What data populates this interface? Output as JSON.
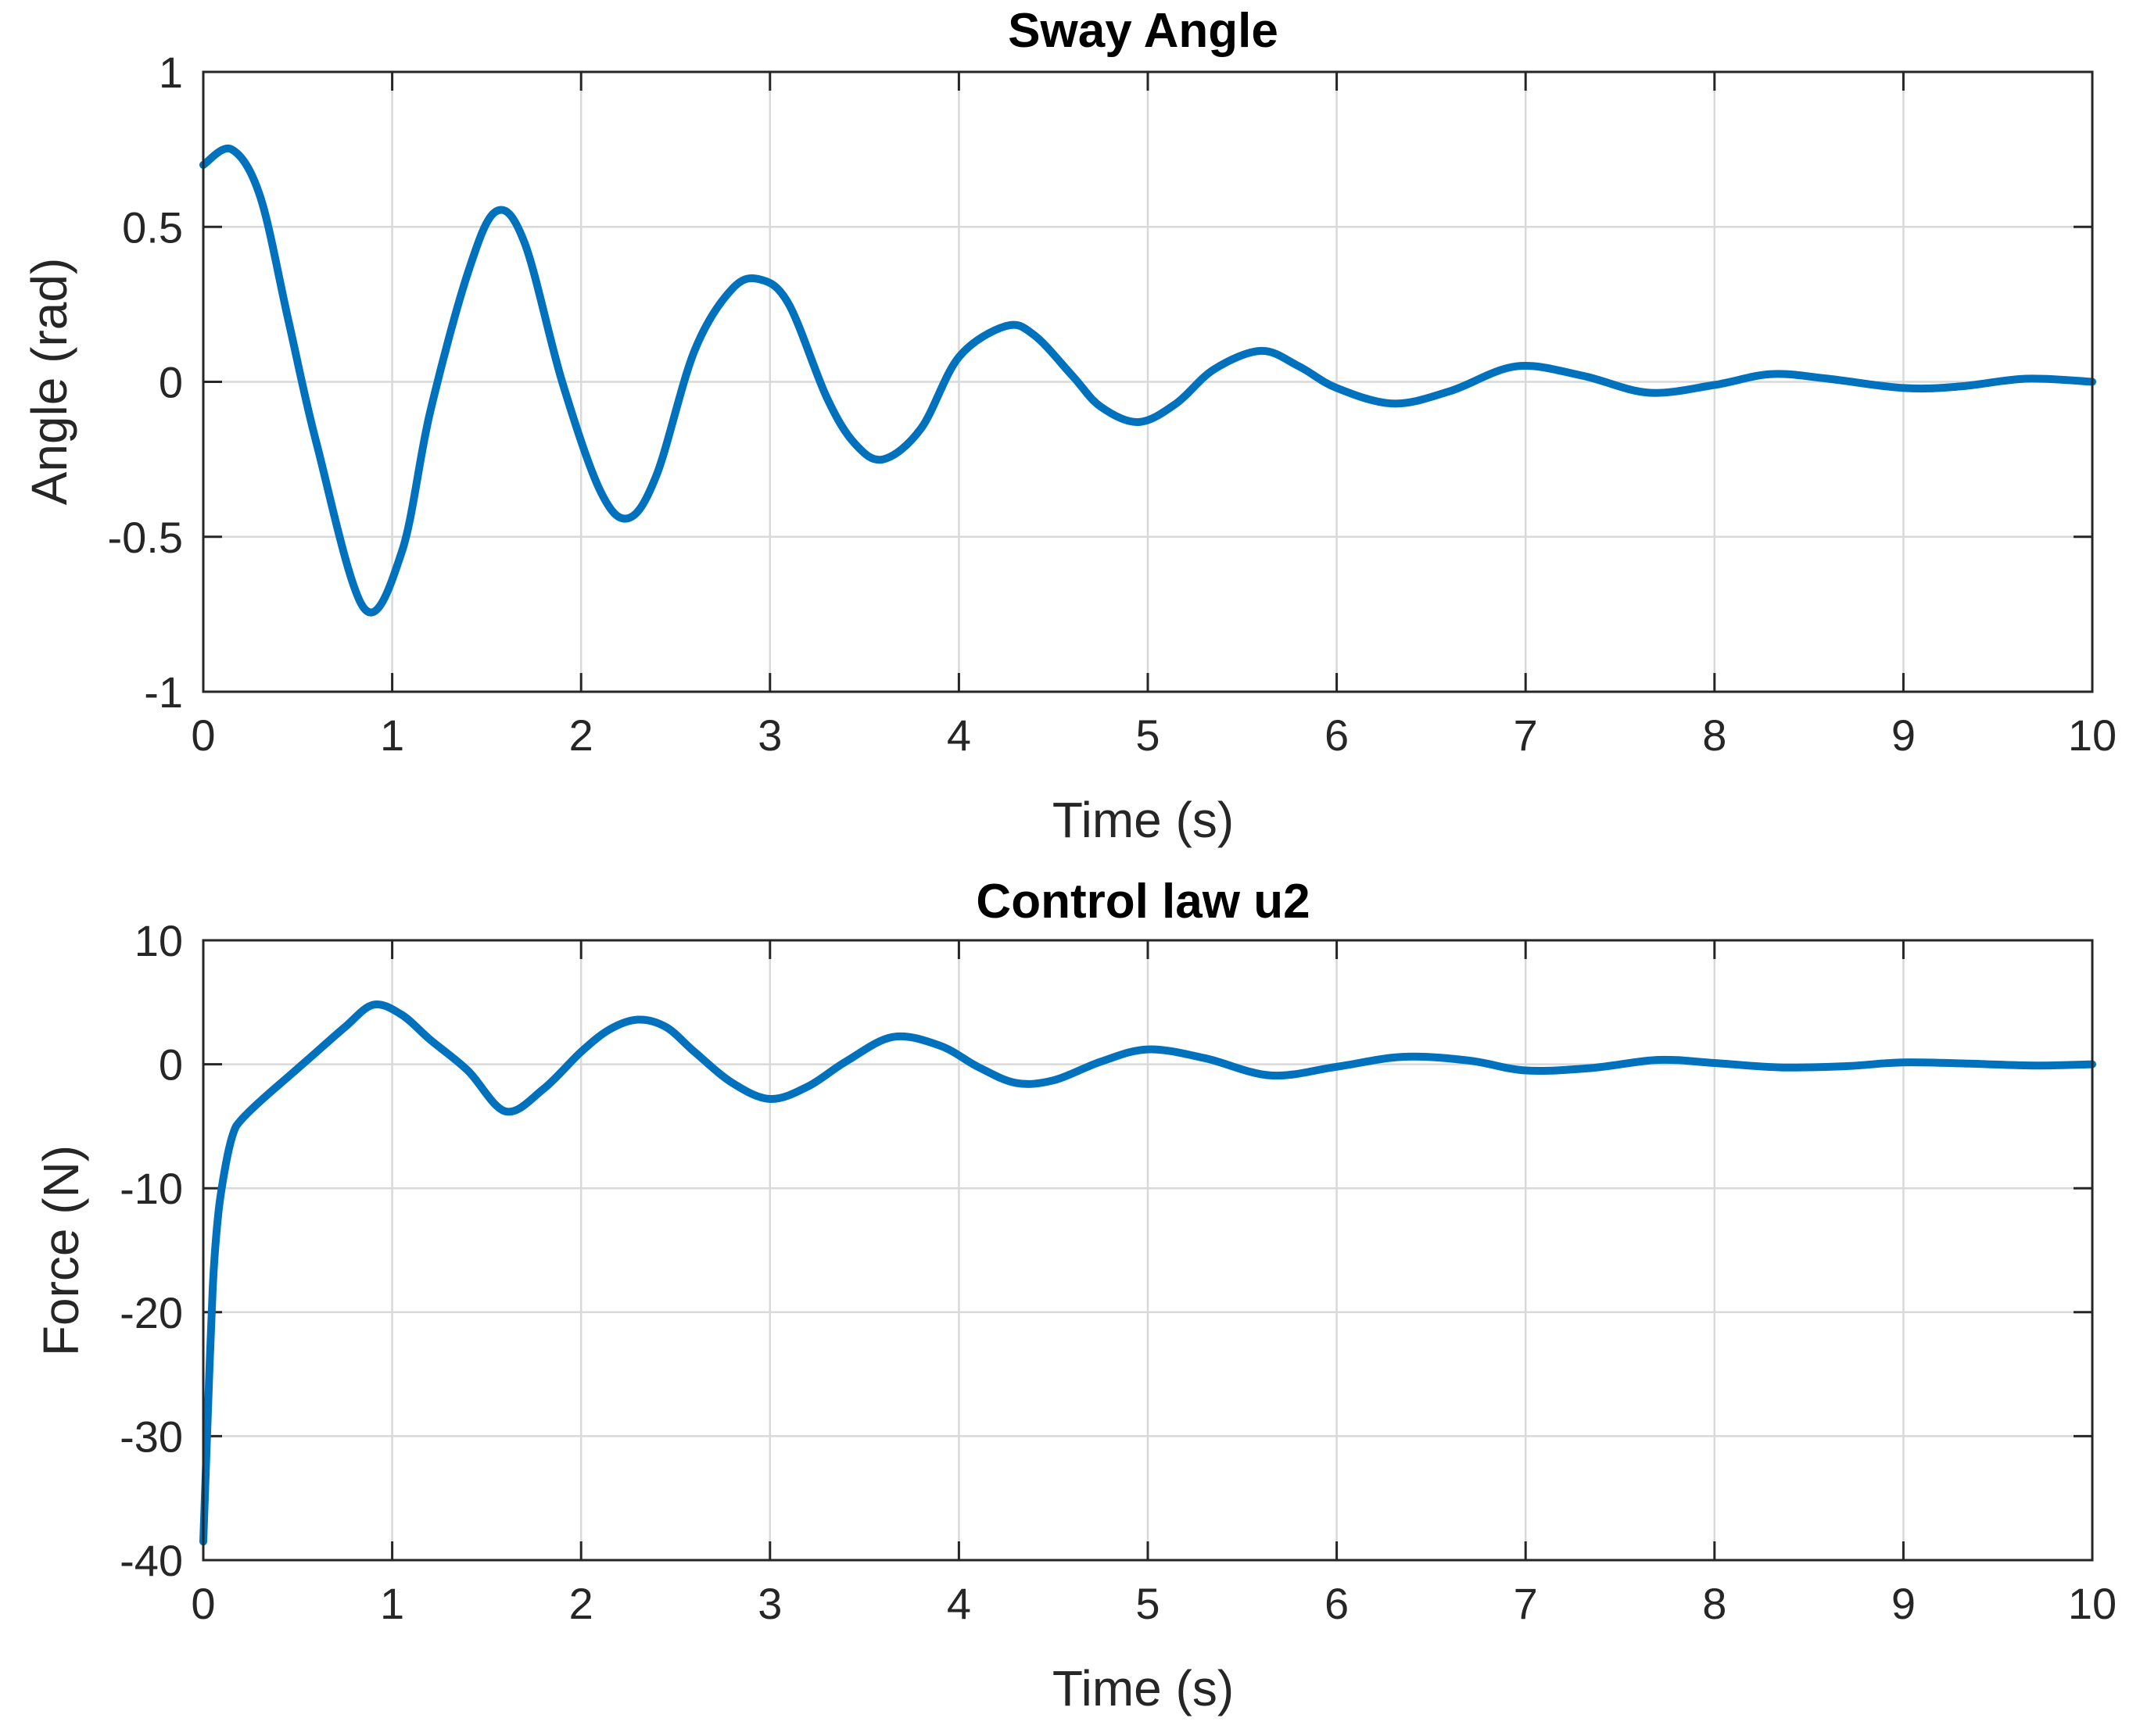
{
  "chart_data": [
    {
      "type": "line",
      "title": "Sway Angle",
      "xlabel": "Time (s)",
      "ylabel": "Angle (rad)",
      "xlim": [
        0,
        10
      ],
      "ylim": [
        -1,
        1
      ],
      "xticks": [
        "0",
        "1",
        "2",
        "3",
        "4",
        "5",
        "6",
        "7",
        "8",
        "9",
        "10"
      ],
      "yticks": [
        "1",
        "0.5",
        "0",
        "-0.5",
        "-1"
      ],
      "grid": true,
      "color": "#0072BD",
      "series": [
        {
          "x": [
            0,
            0.15,
            0.3,
            0.45,
            0.6,
            0.85,
            1.05,
            1.2,
            1.4,
            1.55,
            1.7,
            1.9,
            2.1,
            2.25,
            2.4,
            2.6,
            2.8,
            2.95,
            3.1,
            3.3,
            3.45,
            3.6,
            3.8,
            4.0,
            4.25,
            4.4,
            4.6,
            4.75,
            4.95,
            5.15,
            5.35,
            5.6,
            5.8,
            6.0,
            6.3,
            6.6,
            6.95,
            7.3,
            7.65,
            8.0,
            8.3,
            8.6,
            9.0,
            9.3,
            9.65,
            10.0
          ],
          "y": [
            0.7,
            0.75,
            0.6,
            0.2,
            -0.2,
            -0.73,
            -0.55,
            -0.1,
            0.35,
            0.55,
            0.45,
            0.0,
            -0.35,
            -0.44,
            -0.3,
            0.1,
            0.3,
            0.33,
            0.25,
            -0.05,
            -0.2,
            -0.25,
            -0.15,
            0.08,
            0.18,
            0.15,
            0.02,
            -0.08,
            -0.13,
            -0.07,
            0.04,
            0.1,
            0.05,
            -0.02,
            -0.07,
            -0.03,
            0.05,
            0.02,
            -0.035,
            -0.01,
            0.025,
            0.01,
            -0.02,
            -0.015,
            0.01,
            0.0
          ]
        }
      ]
    },
    {
      "type": "line",
      "title": "Control law u2",
      "xlabel": "Time (s)",
      "ylabel": "Force (N)",
      "xlim": [
        0,
        10
      ],
      "ylim": [
        -40,
        10
      ],
      "xticks": [
        "0",
        "1",
        "2",
        "3",
        "4",
        "5",
        "6",
        "7",
        "8",
        "9",
        "10"
      ],
      "yticks": [
        "10",
        "0",
        "-10",
        "-20",
        "-30",
        "-40"
      ],
      "grid": true,
      "color": "#0072BD",
      "series": [
        {
          "x": [
            0,
            0.02,
            0.05,
            0.08,
            0.12,
            0.16,
            0.2,
            0.3,
            0.45,
            0.6,
            0.75,
            0.9,
            1.05,
            1.2,
            1.4,
            1.6,
            1.8,
            2.0,
            2.15,
            2.3,
            2.45,
            2.6,
            2.8,
            3.0,
            3.2,
            3.4,
            3.65,
            3.9,
            4.1,
            4.3,
            4.5,
            4.75,
            5.0,
            5.3,
            5.65,
            6.0,
            6.35,
            6.7,
            7.0,
            7.35,
            7.7,
            8.0,
            8.35,
            8.7,
            9.0,
            9.35,
            9.7,
            10.0
          ],
          "y": [
            -38.5,
            -30,
            -18,
            -12,
            -8,
            -5.5,
            -4.5,
            -3,
            -1,
            1,
            3,
            4.8,
            4,
            2,
            -0.5,
            -3.8,
            -2,
            1,
            2.8,
            3.6,
            3,
            1,
            -1.5,
            -2.8,
            -1.8,
            0.2,
            2.2,
            1.5,
            -0.2,
            -1.5,
            -1.3,
            0.2,
            1.2,
            0.5,
            -0.9,
            -0.2,
            0.6,
            0.3,
            -0.5,
            -0.3,
            0.35,
            0.1,
            -0.25,
            -0.15,
            0.15,
            0.05,
            -0.1,
            0.0
          ]
        }
      ]
    }
  ]
}
